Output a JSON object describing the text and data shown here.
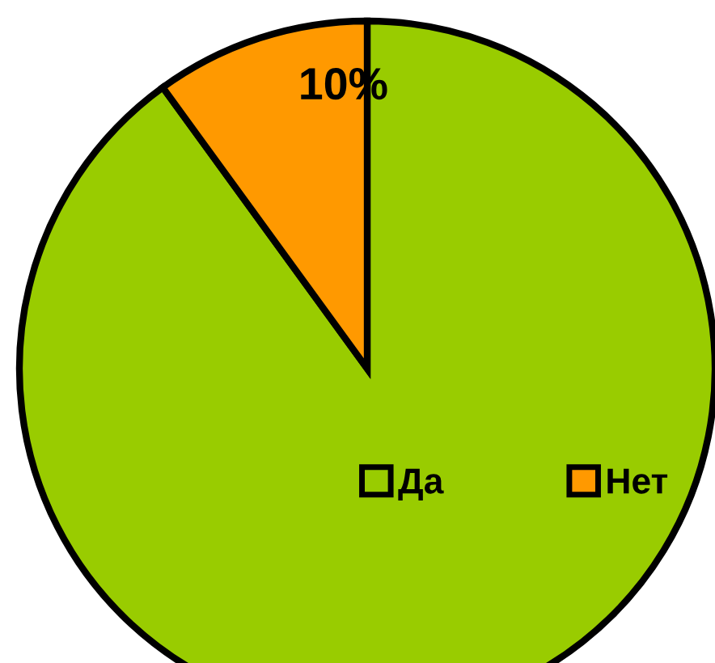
{
  "chart_data": {
    "type": "pie",
    "categories": [
      "Да",
      "Нет"
    ],
    "values": [
      90,
      10
    ],
    "colors": [
      "#99cc00",
      "#ff9900"
    ],
    "value_labels": [
      null,
      "10%"
    ],
    "legend": "right"
  }
}
